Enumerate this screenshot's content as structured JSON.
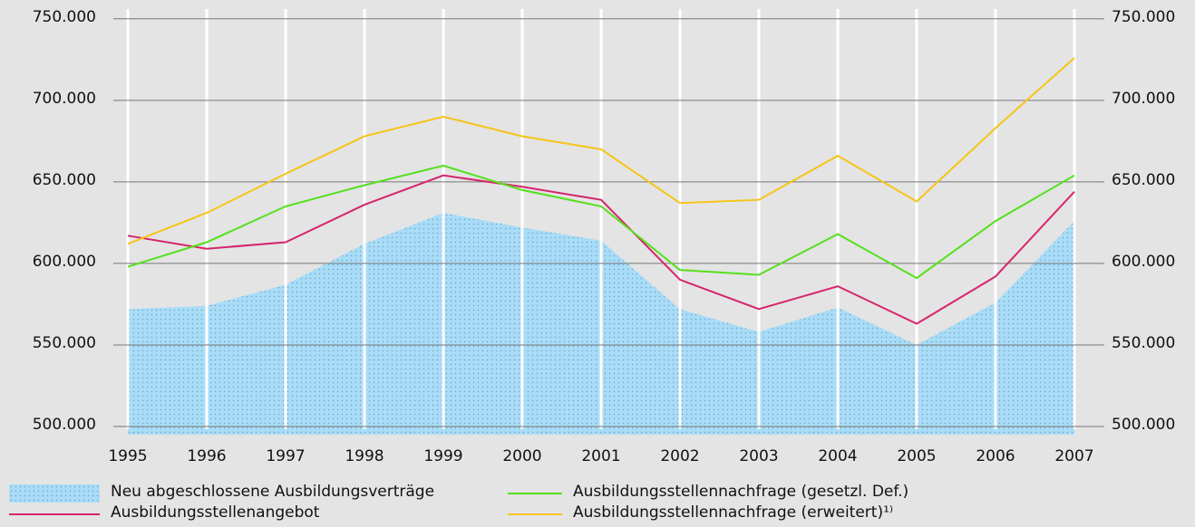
{
  "chart_data": {
    "type": "line",
    "categories": [
      "1995",
      "1996",
      "1997",
      "1998",
      "1999",
      "2000",
      "2001",
      "2002",
      "2003",
      "2004",
      "2005",
      "2006",
      "2007"
    ],
    "series": [
      {
        "name": "Neu abgeschlossene Ausbildungsverträge",
        "kind": "area",
        "color": "#a9dcf7",
        "values": [
          572000,
          574000,
          587000,
          612000,
          631000,
          622000,
          614000,
          572000,
          558000,
          573000,
          550000,
          576000,
          626000
        ]
      },
      {
        "name": "Ausbildungsstellenangebot",
        "kind": "line",
        "color": "#d6246e",
        "values": [
          617000,
          609000,
          613000,
          636000,
          654000,
          647000,
          639000,
          590000,
          572000,
          586000,
          563000,
          592000,
          644000
        ]
      },
      {
        "name": "Ausbildungsstellennachfrage (gesetzl. Def.)",
        "kind": "line",
        "color": "#55e01c",
        "values": [
          598000,
          613000,
          635000,
          648000,
          660000,
          645000,
          635000,
          596000,
          593000,
          618000,
          591000,
          626000,
          654000
        ]
      },
      {
        "name": "Ausbildungsstellennachfrage (erweitert)¹⁾",
        "kind": "line",
        "color": "#f5c518",
        "values": [
          612000,
          631000,
          655000,
          678000,
          690000,
          678000,
          670000,
          637000,
          639000,
          666000,
          638000,
          683000,
          726000
        ]
      }
    ],
    "ylim": [
      495000,
      756000
    ],
    "yticks": [
      {
        "value": 500000,
        "label": "500.000"
      },
      {
        "value": 550000,
        "label": "550.000"
      },
      {
        "value": 600000,
        "label": "600.000"
      },
      {
        "value": 650000,
        "label": "650.000"
      },
      {
        "value": 700000,
        "label": "700.000"
      },
      {
        "value": 750000,
        "label": "750.000"
      }
    ],
    "y2lim": [
      495000,
      756000
    ],
    "y2ticks": [
      {
        "value": 500000,
        "label": "500.000"
      },
      {
        "value": 550000,
        "label": "550.000"
      },
      {
        "value": 600000,
        "label": "600.000"
      },
      {
        "value": 650000,
        "label": "650.000"
      },
      {
        "value": 700000,
        "label": "700.000"
      },
      {
        "value": 750000,
        "label": "750.000"
      }
    ],
    "grid": true
  }
}
